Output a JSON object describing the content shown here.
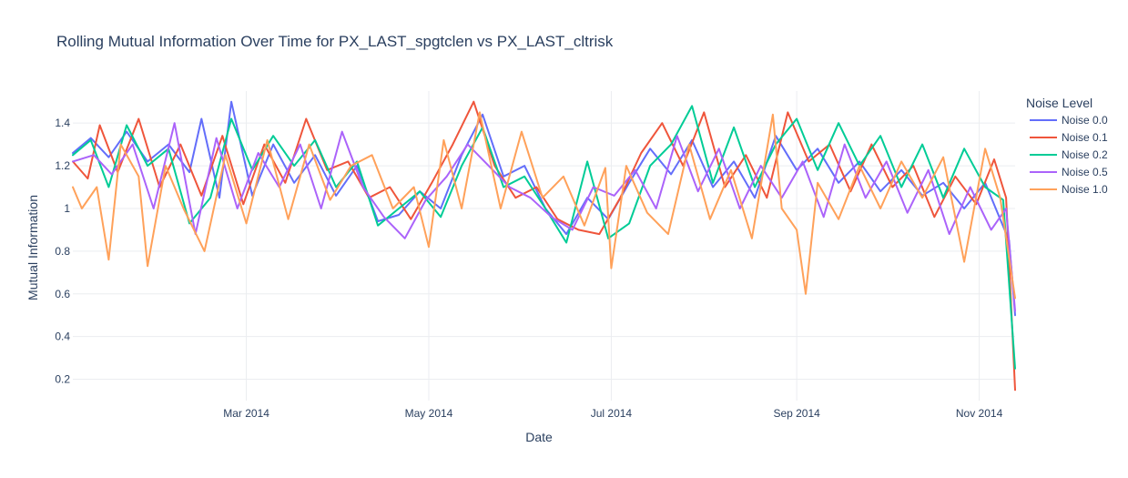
{
  "chart_data": {
    "type": "line",
    "title": "Rolling Mutual Information Over Time for PX_LAST_spgtclen vs PX_LAST_cltrisk",
    "xlabel": "Date",
    "ylabel": "Mutual Information",
    "x_range": [
      "2014-01-02",
      "2014-11-13"
    ],
    "ylim": [
      0.1,
      1.55
    ],
    "x_ticks": [
      {
        "date": "2014-03-01",
        "label": "Mar 2014"
      },
      {
        "date": "2014-05-01",
        "label": "May 2014"
      },
      {
        "date": "2014-07-01",
        "label": "Jul 2014"
      },
      {
        "date": "2014-09-01",
        "label": "Sep 2014"
      },
      {
        "date": "2014-11-01",
        "label": "Nov 2014"
      }
    ],
    "y_ticks": [
      {
        "value": 0.2,
        "label": "0.2"
      },
      {
        "value": 0.4,
        "label": "0.4"
      },
      {
        "value": 0.6,
        "label": "0.6"
      },
      {
        "value": 0.8,
        "label": "0.8"
      },
      {
        "value": 1.0,
        "label": "1"
      },
      {
        "value": 1.2,
        "label": "1.2"
      },
      {
        "value": 1.4,
        "label": "1.4"
      }
    ],
    "grid": true,
    "legend": {
      "title": "Noise Level",
      "position": "top-right"
    },
    "series": [
      {
        "name": "Noise 0.0",
        "color": "#636efa",
        "points": [
          [
            "2014-01-02",
            1.26
          ],
          [
            "2014-01-08",
            1.33
          ],
          [
            "2014-01-14",
            1.24
          ],
          [
            "2014-01-20",
            1.36
          ],
          [
            "2014-01-27",
            1.22
          ],
          [
            "2014-02-03",
            1.3
          ],
          [
            "2014-02-10",
            1.17
          ],
          [
            "2014-02-14",
            1.42
          ],
          [
            "2014-02-20",
            1.05
          ],
          [
            "2014-02-24",
            1.5
          ],
          [
            "2014-03-03",
            1.06
          ],
          [
            "2014-03-10",
            1.3
          ],
          [
            "2014-03-17",
            1.12
          ],
          [
            "2014-03-24",
            1.25
          ],
          [
            "2014-03-31",
            1.06
          ],
          [
            "2014-04-07",
            1.2
          ],
          [
            "2014-04-14",
            0.94
          ],
          [
            "2014-04-21",
            0.97
          ],
          [
            "2014-04-28",
            1.08
          ],
          [
            "2014-05-05",
            1.0
          ],
          [
            "2014-05-12",
            1.25
          ],
          [
            "2014-05-19",
            1.44
          ],
          [
            "2014-05-26",
            1.15
          ],
          [
            "2014-06-02",
            1.2
          ],
          [
            "2014-06-09",
            1.0
          ],
          [
            "2014-06-16",
            0.88
          ],
          [
            "2014-06-23",
            1.05
          ],
          [
            "2014-06-30",
            0.95
          ],
          [
            "2014-07-07",
            1.12
          ],
          [
            "2014-07-14",
            1.28
          ],
          [
            "2014-07-21",
            1.16
          ],
          [
            "2014-07-28",
            1.32
          ],
          [
            "2014-08-04",
            1.1
          ],
          [
            "2014-08-11",
            1.22
          ],
          [
            "2014-08-18",
            1.05
          ],
          [
            "2014-08-25",
            1.34
          ],
          [
            "2014-09-01",
            1.18
          ],
          [
            "2014-09-08",
            1.28
          ],
          [
            "2014-09-15",
            1.12
          ],
          [
            "2014-09-22",
            1.22
          ],
          [
            "2014-09-29",
            1.08
          ],
          [
            "2014-10-06",
            1.18
          ],
          [
            "2014-10-13",
            1.06
          ],
          [
            "2014-10-20",
            1.12
          ],
          [
            "2014-10-27",
            1.0
          ],
          [
            "2014-11-03",
            1.12
          ],
          [
            "2014-11-08",
            0.95
          ],
          [
            "2014-11-11",
            0.85
          ],
          [
            "2014-11-13",
            0.5
          ]
        ]
      },
      {
        "name": "Noise 0.1",
        "color": "#ef553b",
        "points": [
          [
            "2014-01-02",
            1.22
          ],
          [
            "2014-01-07",
            1.14
          ],
          [
            "2014-01-11",
            1.39
          ],
          [
            "2014-01-17",
            1.17
          ],
          [
            "2014-01-24",
            1.42
          ],
          [
            "2014-01-31",
            1.1
          ],
          [
            "2014-02-07",
            1.3
          ],
          [
            "2014-02-14",
            1.06
          ],
          [
            "2014-02-21",
            1.34
          ],
          [
            "2014-02-28",
            1.02
          ],
          [
            "2014-03-07",
            1.3
          ],
          [
            "2014-03-14",
            1.12
          ],
          [
            "2014-03-21",
            1.42
          ],
          [
            "2014-03-28",
            1.18
          ],
          [
            "2014-04-04",
            1.22
          ],
          [
            "2014-04-11",
            1.05
          ],
          [
            "2014-04-18",
            1.1
          ],
          [
            "2014-04-25",
            0.95
          ],
          [
            "2014-05-02",
            1.12
          ],
          [
            "2014-05-09",
            1.3
          ],
          [
            "2014-05-16",
            1.5
          ],
          [
            "2014-05-23",
            1.2
          ],
          [
            "2014-05-30",
            1.05
          ],
          [
            "2014-06-06",
            1.1
          ],
          [
            "2014-06-13",
            0.95
          ],
          [
            "2014-06-20",
            0.9
          ],
          [
            "2014-06-27",
            0.88
          ],
          [
            "2014-07-04",
            1.05
          ],
          [
            "2014-07-11",
            1.26
          ],
          [
            "2014-07-18",
            1.4
          ],
          [
            "2014-07-25",
            1.2
          ],
          [
            "2014-08-01",
            1.45
          ],
          [
            "2014-08-08",
            1.1
          ],
          [
            "2014-08-15",
            1.25
          ],
          [
            "2014-08-22",
            1.05
          ],
          [
            "2014-08-29",
            1.45
          ],
          [
            "2014-09-05",
            1.22
          ],
          [
            "2014-09-12",
            1.3
          ],
          [
            "2014-09-19",
            1.08
          ],
          [
            "2014-09-26",
            1.3
          ],
          [
            "2014-10-03",
            1.1
          ],
          [
            "2014-10-10",
            1.2
          ],
          [
            "2014-10-17",
            0.96
          ],
          [
            "2014-10-24",
            1.15
          ],
          [
            "2014-10-31",
            1.02
          ],
          [
            "2014-11-06",
            1.23
          ],
          [
            "2014-11-10",
            1.05
          ],
          [
            "2014-11-13",
            0.15
          ]
        ]
      },
      {
        "name": "Noise 0.2",
        "color": "#00cc96",
        "points": [
          [
            "2014-01-02",
            1.25
          ],
          [
            "2014-01-08",
            1.32
          ],
          [
            "2014-01-14",
            1.1
          ],
          [
            "2014-01-20",
            1.39
          ],
          [
            "2014-01-27",
            1.2
          ],
          [
            "2014-02-03",
            1.28
          ],
          [
            "2014-02-10",
            0.93
          ],
          [
            "2014-02-17",
            1.05
          ],
          [
            "2014-02-24",
            1.42
          ],
          [
            "2014-03-03",
            1.18
          ],
          [
            "2014-03-10",
            1.34
          ],
          [
            "2014-03-17",
            1.2
          ],
          [
            "2014-03-24",
            1.32
          ],
          [
            "2014-03-31",
            1.1
          ],
          [
            "2014-04-07",
            1.22
          ],
          [
            "2014-04-14",
            0.92
          ],
          [
            "2014-04-21",
            1.0
          ],
          [
            "2014-04-28",
            1.08
          ],
          [
            "2014-05-05",
            0.96
          ],
          [
            "2014-05-12",
            1.2
          ],
          [
            "2014-05-19",
            1.38
          ],
          [
            "2014-05-26",
            1.1
          ],
          [
            "2014-06-02",
            1.15
          ],
          [
            "2014-06-09",
            1.0
          ],
          [
            "2014-06-16",
            0.84
          ],
          [
            "2014-06-23",
            1.22
          ],
          [
            "2014-06-30",
            0.86
          ],
          [
            "2014-07-07",
            0.93
          ],
          [
            "2014-07-14",
            1.2
          ],
          [
            "2014-07-21",
            1.3
          ],
          [
            "2014-07-28",
            1.48
          ],
          [
            "2014-08-04",
            1.12
          ],
          [
            "2014-08-11",
            1.38
          ],
          [
            "2014-08-18",
            1.1
          ],
          [
            "2014-08-25",
            1.3
          ],
          [
            "2014-09-01",
            1.42
          ],
          [
            "2014-09-08",
            1.18
          ],
          [
            "2014-09-15",
            1.4
          ],
          [
            "2014-09-22",
            1.2
          ],
          [
            "2014-09-29",
            1.34
          ],
          [
            "2014-10-06",
            1.1
          ],
          [
            "2014-10-13",
            1.3
          ],
          [
            "2014-10-20",
            1.05
          ],
          [
            "2014-10-27",
            1.28
          ],
          [
            "2014-11-03",
            1.1
          ],
          [
            "2014-11-09",
            1.04
          ],
          [
            "2014-11-13",
            0.25
          ]
        ]
      },
      {
        "name": "Noise 0.5",
        "color": "#ab63fa",
        "points": [
          [
            "2014-01-02",
            1.22
          ],
          [
            "2014-01-09",
            1.25
          ],
          [
            "2014-01-15",
            1.16
          ],
          [
            "2014-01-22",
            1.3
          ],
          [
            "2014-01-29",
            1.0
          ],
          [
            "2014-02-05",
            1.4
          ],
          [
            "2014-02-12",
            0.88
          ],
          [
            "2014-02-19",
            1.33
          ],
          [
            "2014-02-26",
            1.0
          ],
          [
            "2014-03-05",
            1.26
          ],
          [
            "2014-03-12",
            1.1
          ],
          [
            "2014-03-19",
            1.3
          ],
          [
            "2014-03-26",
            1.0
          ],
          [
            "2014-04-02",
            1.36
          ],
          [
            "2014-04-09",
            1.1
          ],
          [
            "2014-04-16",
            0.96
          ],
          [
            "2014-04-23",
            0.86
          ],
          [
            "2014-04-30",
            1.04
          ],
          [
            "2014-05-07",
            1.15
          ],
          [
            "2014-05-14",
            1.3
          ],
          [
            "2014-05-21",
            1.2
          ],
          [
            "2014-05-28",
            1.1
          ],
          [
            "2014-06-04",
            1.05
          ],
          [
            "2014-06-11",
            0.96
          ],
          [
            "2014-06-18",
            0.9
          ],
          [
            "2014-06-25",
            1.1
          ],
          [
            "2014-07-02",
            1.06
          ],
          [
            "2014-07-09",
            1.18
          ],
          [
            "2014-07-16",
            1.0
          ],
          [
            "2014-07-23",
            1.34
          ],
          [
            "2014-07-30",
            1.08
          ],
          [
            "2014-08-06",
            1.28
          ],
          [
            "2014-08-13",
            1.0
          ],
          [
            "2014-08-20",
            1.2
          ],
          [
            "2014-08-27",
            1.05
          ],
          [
            "2014-09-03",
            1.22
          ],
          [
            "2014-09-10",
            0.96
          ],
          [
            "2014-09-17",
            1.3
          ],
          [
            "2014-09-24",
            1.05
          ],
          [
            "2014-10-01",
            1.22
          ],
          [
            "2014-10-08",
            0.98
          ],
          [
            "2014-10-15",
            1.18
          ],
          [
            "2014-10-22",
            0.88
          ],
          [
            "2014-10-29",
            1.1
          ],
          [
            "2014-11-05",
            0.9
          ],
          [
            "2014-11-10",
            1.0
          ],
          [
            "2014-11-13",
            0.52
          ]
        ]
      },
      {
        "name": "Noise 1.0",
        "color": "#ffa15a",
        "points": [
          [
            "2014-01-02",
            1.1
          ],
          [
            "2014-01-05",
            1.0
          ],
          [
            "2014-01-10",
            1.1
          ],
          [
            "2014-01-14",
            0.76
          ],
          [
            "2014-01-18",
            1.3
          ],
          [
            "2014-01-24",
            1.15
          ],
          [
            "2014-01-27",
            0.73
          ],
          [
            "2014-02-02",
            1.2
          ],
          [
            "2014-02-08",
            1.0
          ],
          [
            "2014-02-15",
            0.8
          ],
          [
            "2014-02-22",
            1.25
          ],
          [
            "2014-03-01",
            0.93
          ],
          [
            "2014-03-08",
            1.32
          ],
          [
            "2014-03-15",
            0.95
          ],
          [
            "2014-03-22",
            1.3
          ],
          [
            "2014-03-29",
            1.04
          ],
          [
            "2014-04-05",
            1.2
          ],
          [
            "2014-04-12",
            1.25
          ],
          [
            "2014-04-19",
            1.0
          ],
          [
            "2014-04-26",
            1.1
          ],
          [
            "2014-05-01",
            0.82
          ],
          [
            "2014-05-06",
            1.32
          ],
          [
            "2014-05-12",
            1.0
          ],
          [
            "2014-05-18",
            1.45
          ],
          [
            "2014-05-25",
            1.0
          ],
          [
            "2014-06-01",
            1.36
          ],
          [
            "2014-06-08",
            1.05
          ],
          [
            "2014-06-15",
            1.15
          ],
          [
            "2014-06-22",
            0.92
          ],
          [
            "2014-06-29",
            1.19
          ],
          [
            "2014-07-01",
            0.72
          ],
          [
            "2014-07-06",
            1.2
          ],
          [
            "2014-07-13",
            0.98
          ],
          [
            "2014-07-20",
            0.88
          ],
          [
            "2014-07-27",
            1.3
          ],
          [
            "2014-08-03",
            0.95
          ],
          [
            "2014-08-10",
            1.18
          ],
          [
            "2014-08-17",
            0.86
          ],
          [
            "2014-08-24",
            1.44
          ],
          [
            "2014-08-27",
            1.0
          ],
          [
            "2014-09-01",
            0.9
          ],
          [
            "2014-09-04",
            0.6
          ],
          [
            "2014-09-08",
            1.12
          ],
          [
            "2014-09-15",
            0.95
          ],
          [
            "2014-09-22",
            1.2
          ],
          [
            "2014-09-29",
            1.0
          ],
          [
            "2014-10-06",
            1.22
          ],
          [
            "2014-10-13",
            1.05
          ],
          [
            "2014-10-20",
            1.24
          ],
          [
            "2014-10-27",
            0.75
          ],
          [
            "2014-11-03",
            1.28
          ],
          [
            "2014-11-08",
            1.05
          ],
          [
            "2014-11-13",
            0.58
          ]
        ]
      }
    ]
  }
}
